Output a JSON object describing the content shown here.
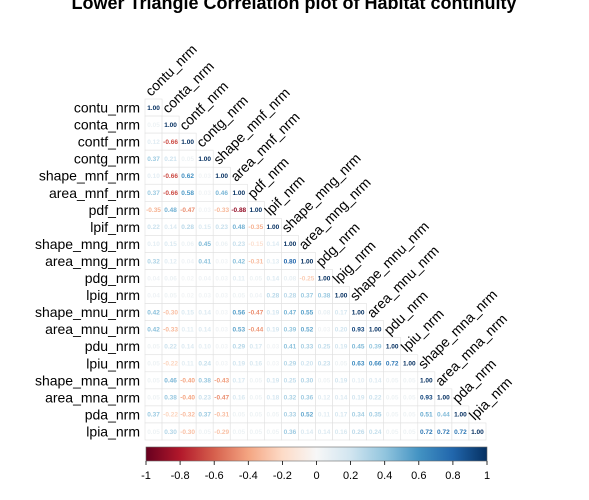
{
  "chart_data": {
    "type": "heatmap",
    "title": "Lower Triangle Correlation plot of Habitat continuity",
    "variables": [
      "contu_nrm",
      "conta_nrm",
      "contf_nrm",
      "contg_nrm",
      "shape_mnf_nrm",
      "area_mnf_nrm",
      "pdf_nrm",
      "lpif_nrm",
      "shape_mng_nrm",
      "area_mng_nrm",
      "pdg_nrm",
      "lpig_nrm",
      "shape_mnu_nrm",
      "area_mnu_nrm",
      "pdu_nrm",
      "lpiu_nrm",
      "shape_mna_nrm",
      "area_mna_nrm",
      "pda_nrm",
      "lpia_nrm"
    ],
    "matrix": [
      [
        1.0
      ],
      [
        0.05,
        1.0
      ],
      [
        0.12,
        -0.66,
        1.0
      ],
      [
        0.37,
        0.21,
        0.05,
        1.0
      ],
      [
        0.1,
        -0.66,
        0.62,
        0.03,
        1.0
      ],
      [
        0.37,
        -0.66,
        0.58,
        0.03,
        0.46,
        1.0
      ],
      [
        -0.35,
        0.48,
        -0.47,
        0.03,
        -0.33,
        -0.88,
        1.0
      ],
      [
        0.22,
        0.14,
        0.28,
        0.15,
        0.23,
        0.48,
        -0.35,
        1.0
      ],
      [
        0.1,
        0.15,
        0.06,
        0.45,
        0.06,
        0.23,
        -0.15,
        0.14,
        1.0
      ],
      [
        0.32,
        0.12,
        0.04,
        0.41,
        0.03,
        0.42,
        -0.31,
        0.13,
        0.8,
        1.0
      ],
      [
        0.04,
        0.06,
        0.02,
        0.04,
        0.03,
        0.11,
        0.05,
        0.14,
        0.08,
        -0.25,
        1.0
      ],
      [
        0.04,
        0.05,
        0.02,
        0.03,
        0.03,
        0.05,
        0.04,
        0.28,
        0.28,
        0.37,
        0.38,
        1.0
      ],
      [
        0.42,
        -0.3,
        0.15,
        0.14,
        0.03,
        0.56,
        -0.47,
        0.19,
        0.47,
        0.55,
        0.08,
        0.17,
        1.0
      ],
      [
        0.42,
        -0.33,
        0.11,
        0.14,
        0.03,
        0.53,
        -0.44,
        0.19,
        0.39,
        0.52,
        0.03,
        0.2,
        0.93,
        1.0
      ],
      [
        0.05,
        0.22,
        0.14,
        0.1,
        0.03,
        0.29,
        0.17,
        0.03,
        0.41,
        0.33,
        0.25,
        0.19,
        0.45,
        0.39,
        1.0
      ],
      [
        0.05,
        -0.22,
        0.11,
        0.24,
        0.03,
        0.19,
        0.16,
        0.03,
        0.29,
        0.2,
        0.23,
        0.05,
        0.63,
        0.66,
        0.72,
        1.0
      ],
      [
        0.05,
        0.46,
        -0.4,
        0.38,
        -0.43,
        0.17,
        0.05,
        0.19,
        0.25,
        0.3,
        0.05,
        0.19,
        0.1,
        0.14,
        0.05,
        0.05,
        1.0
      ],
      [
        0.05,
        0.38,
        -0.4,
        0.23,
        -0.47,
        0.16,
        0.05,
        0.18,
        0.32,
        0.36,
        0.12,
        0.14,
        0.19,
        0.22,
        0.05,
        0.05,
        0.93,
        1.0
      ],
      [
        0.37,
        -0.22,
        -0.32,
        0.37,
        -0.31,
        0.05,
        0.05,
        0.05,
        0.33,
        0.52,
        0.11,
        0.17,
        0.34,
        0.35,
        0.05,
        0.05,
        0.51,
        0.44,
        1.0
      ],
      [
        0.05,
        0.3,
        -0.3,
        0.05,
        -0.29,
        0.05,
        0.05,
        0.05,
        0.36,
        0.14,
        0.14,
        0.16,
        0.26,
        0.24,
        0.05,
        0.05,
        0.72,
        0.72,
        0.72,
        1.0
      ]
    ],
    "colorbar_ticks": [
      "-1",
      "-0.8",
      "-0.6",
      "-0.4",
      "-0.2",
      "0",
      "0.2",
      "0.4",
      "0.6",
      "0.8",
      "1"
    ],
    "color_range": [
      -1,
      1
    ],
    "color_low": "#67001F",
    "color_mid": "#F7F7F7",
    "color_high": "#053061",
    "grid": true
  }
}
